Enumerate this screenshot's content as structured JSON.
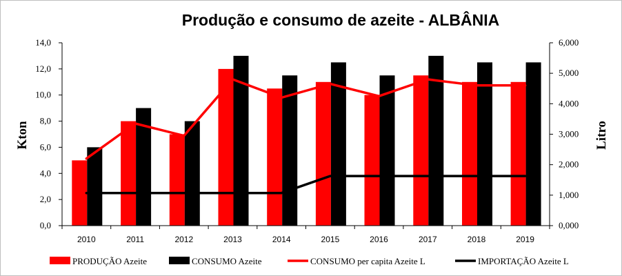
{
  "chart_data": {
    "type": "bar",
    "title": "Produção e consumo de azeite - ALBÂNIA",
    "categories": [
      "2010",
      "2011",
      "2012",
      "2013",
      "2014",
      "2015",
      "2016",
      "2017",
      "2018",
      "2019"
    ],
    "ylabel_left": "Kton",
    "ylabel_right": "Litro",
    "ylim_left": [
      0,
      14
    ],
    "ylim_right": [
      0,
      6
    ],
    "yticks_left": [
      "0,0",
      "2,0",
      "4,0",
      "6,0",
      "8,0",
      "10,0",
      "12,0",
      "14,0"
    ],
    "yticks_right": [
      "0,000",
      "1,000",
      "2,000",
      "3,000",
      "4,000",
      "5,000",
      "6,000"
    ],
    "grid": false,
    "legend_position": "bottom",
    "series": [
      {
        "name": "PRODUÇÃO Azeite",
        "kind": "bar",
        "axis": "left",
        "color": "#ff0000",
        "values": [
          5,
          8,
          7,
          12,
          10.5,
          11,
          10,
          11.5,
          11,
          11
        ]
      },
      {
        "name": "CONSUMO Azeite",
        "kind": "bar",
        "axis": "left",
        "color": "#000000",
        "values": [
          6,
          9,
          8,
          13,
          11.5,
          12.5,
          11.5,
          13,
          12.5,
          12.5
        ]
      },
      {
        "name": "CONSUMO per capita Azeite L",
        "kind": "line",
        "axis": "right",
        "color": "#ff0000",
        "values": [
          2.2,
          3.35,
          2.95,
          4.8,
          4.2,
          4.65,
          4.25,
          4.8,
          4.6,
          4.6
        ]
      },
      {
        "name": "IMPORTAÇÃO Azeite L",
        "kind": "line",
        "axis": "left",
        "color": "#000000",
        "values": [
          2.5,
          2.5,
          2.5,
          2.5,
          2.5,
          3.8,
          3.8,
          3.8,
          3.8,
          3.8
        ]
      }
    ]
  }
}
